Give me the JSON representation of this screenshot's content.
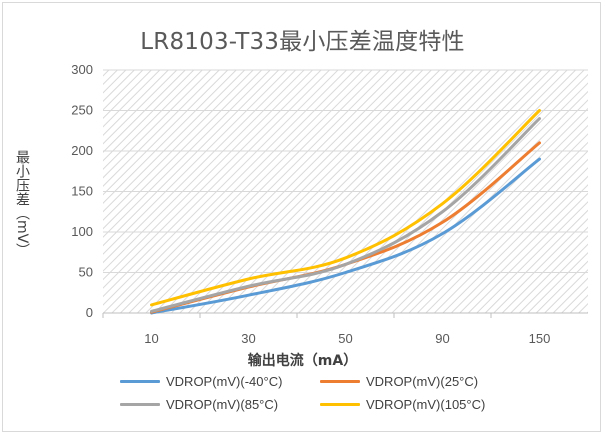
{
  "chart_data": {
    "type": "line",
    "title": "LR8103-T33最小压差温度特性",
    "xlabel": "输出电流（mA）",
    "ylabel": "最小压差（mV）",
    "categories": [
      "10",
      "30",
      "50",
      "90",
      "150"
    ],
    "ylim": [
      0,
      300
    ],
    "yticks": [
      "0",
      "50",
      "100",
      "150",
      "200",
      "250",
      "300"
    ],
    "grid": true,
    "legend_position": "bottom",
    "series": [
      {
        "name": "VDROP(mV)(-40°C)",
        "color": "#5b9bd5",
        "values": [
          0,
          22,
          50,
          98,
          190
        ]
      },
      {
        "name": "VDROP(mV)(25°C)",
        "color": "#ed7d31",
        "values": [
          1,
          32,
          60,
          112,
          210
        ]
      },
      {
        "name": "VDROP(mV)(85°C)",
        "color": "#a5a5a5",
        "values": [
          2,
          33,
          60,
          125,
          240
        ]
      },
      {
        "name": "VDROP(mV)(105°C)",
        "color": "#ffc000",
        "values": [
          10,
          42,
          68,
          135,
          250
        ]
      }
    ]
  }
}
